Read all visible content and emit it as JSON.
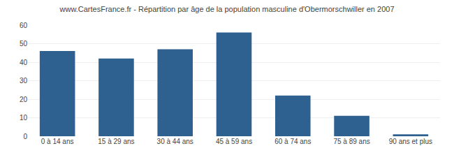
{
  "chart_data": {
    "type": "bar",
    "title": "www.CartesFrance.fr - Répartition par âge de la population masculine d'Obermorschwiller en 2007",
    "categories": [
      "0 à 14 ans",
      "15 à 29 ans",
      "30 à 44 ans",
      "45 à 59 ans",
      "60 à 74 ans",
      "75 à 89 ans",
      "90 ans et plus"
    ],
    "values": [
      46,
      42,
      47,
      56,
      22,
      11,
      1
    ],
    "color": "#2e6090",
    "ylim": [
      0,
      60
    ],
    "yticks": [
      0,
      10,
      20,
      30,
      40,
      50,
      60
    ],
    "grid": true
  }
}
